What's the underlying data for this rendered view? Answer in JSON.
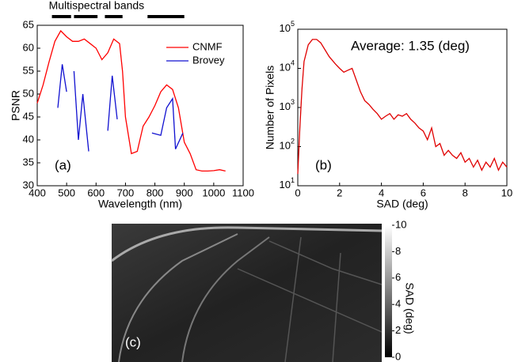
{
  "chart_data": [
    {
      "type": "line",
      "xlabel": "Wavelength (nm)",
      "ylabel": "PSNR",
      "annotation": "(a)",
      "xlim": [
        400,
        1100
      ],
      "xticks": [
        400,
        500,
        600,
        700,
        800,
        900,
        1000,
        1100
      ],
      "ylim": [
        30,
        65
      ],
      "yticks": [
        30,
        35,
        40,
        45,
        50,
        55,
        60,
        65
      ],
      "legend": "upper right",
      "bands": {
        "label": "Multispectral bands",
        "ranges": [
          [
            450,
            515
          ],
          [
            525,
            605
          ],
          [
            630,
            690
          ],
          [
            775,
            900
          ]
        ],
        "color": "#000000"
      },
      "series": [
        {
          "name": "CNMF",
          "color": "#ff0000",
          "x": [
            400,
            420,
            440,
            460,
            480,
            500,
            520,
            540,
            560,
            580,
            600,
            620,
            640,
            660,
            680,
            690,
            700,
            720,
            740,
            760,
            780,
            800,
            820,
            840,
            860,
            880,
            900,
            920,
            940,
            960,
            980,
            1000,
            1020,
            1040
          ],
          "values": [
            48,
            52,
            57,
            61.5,
            63.8,
            62.5,
            61.5,
            61.5,
            62,
            61,
            60,
            57.5,
            59,
            62,
            61,
            55,
            45,
            37,
            37.5,
            43,
            45,
            47.5,
            50.5,
            52,
            51,
            47,
            39.5,
            37,
            33.5,
            33.2,
            33.2,
            33.3,
            33.5,
            33.2
          ]
        },
        {
          "name": "Brovey",
          "color": "#1010d0",
          "x": [
            470,
            485,
            500,
            510,
            525,
            540,
            555,
            575,
            590,
            640,
            655,
            672,
            700,
            790,
            820,
            840,
            860,
            870,
            895
          ],
          "values": [
            47,
            56.5,
            50.5,
            null,
            55,
            40,
            50,
            37.5,
            null,
            42,
            54,
            44.5,
            null,
            41.5,
            41,
            47,
            49,
            38,
            41.5
          ]
        }
      ]
    },
    {
      "type": "line",
      "xlabel": "SAD (deg)",
      "ylabel": "Number of Pixels",
      "annotation": "(b)",
      "note": "Average: 1.35 (deg)",
      "ylog": true,
      "xlim": [
        0,
        10
      ],
      "xticks": [
        0,
        2,
        4,
        6,
        8,
        10
      ],
      "ylim": [
        10,
        100000
      ],
      "yticks": [
        {
          "value": 10,
          "label": "10",
          "sup": "1"
        },
        {
          "value": 100,
          "label": "10",
          "sup": "2"
        },
        {
          "value": 1000,
          "label": "10",
          "sup": "3"
        },
        {
          "value": 10000,
          "label": "10",
          "sup": "4"
        },
        {
          "value": 100000,
          "label": "10",
          "sup": "5"
        }
      ],
      "series": [
        {
          "name": null,
          "color": "#e00000",
          "x": [
            0,
            0.1,
            0.2,
            0.3,
            0.5,
            0.7,
            0.9,
            1.1,
            1.3,
            1.5,
            1.8,
            2.0,
            2.2,
            2.4,
            2.6,
            2.8,
            3.0,
            3.2,
            3.4,
            3.6,
            3.8,
            4.0,
            4.2,
            4.4,
            4.6,
            4.8,
            5.0,
            5.2,
            5.4,
            5.6,
            5.8,
            6.0,
            6.2,
            6.4,
            6.6,
            6.8,
            7.0,
            7.2,
            7.4,
            7.6,
            7.8,
            8.0,
            8.2,
            8.4,
            8.6,
            8.8,
            9.0,
            9.2,
            9.4,
            9.6,
            9.8,
            10
          ],
          "values": [
            20,
            300,
            3000,
            15000,
            40000,
            55000,
            55000,
            45000,
            30000,
            20000,
            13000,
            10000,
            8000,
            9000,
            10000,
            5000,
            2500,
            1500,
            1200,
            900,
            700,
            500,
            600,
            700,
            500,
            650,
            600,
            700,
            500,
            400,
            300,
            250,
            150,
            300,
            100,
            120,
            60,
            80,
            60,
            50,
            70,
            40,
            50,
            30,
            45,
            25,
            40,
            30,
            50,
            25,
            40,
            30
          ]
        }
      ]
    },
    {
      "type": "image",
      "annotation": "(c)",
      "colorbar": {
        "label": "SAD (deg)",
        "lim": [
          0,
          10
        ],
        "ticks": [
          0,
          2,
          4,
          6,
          8,
          10
        ]
      }
    }
  ]
}
